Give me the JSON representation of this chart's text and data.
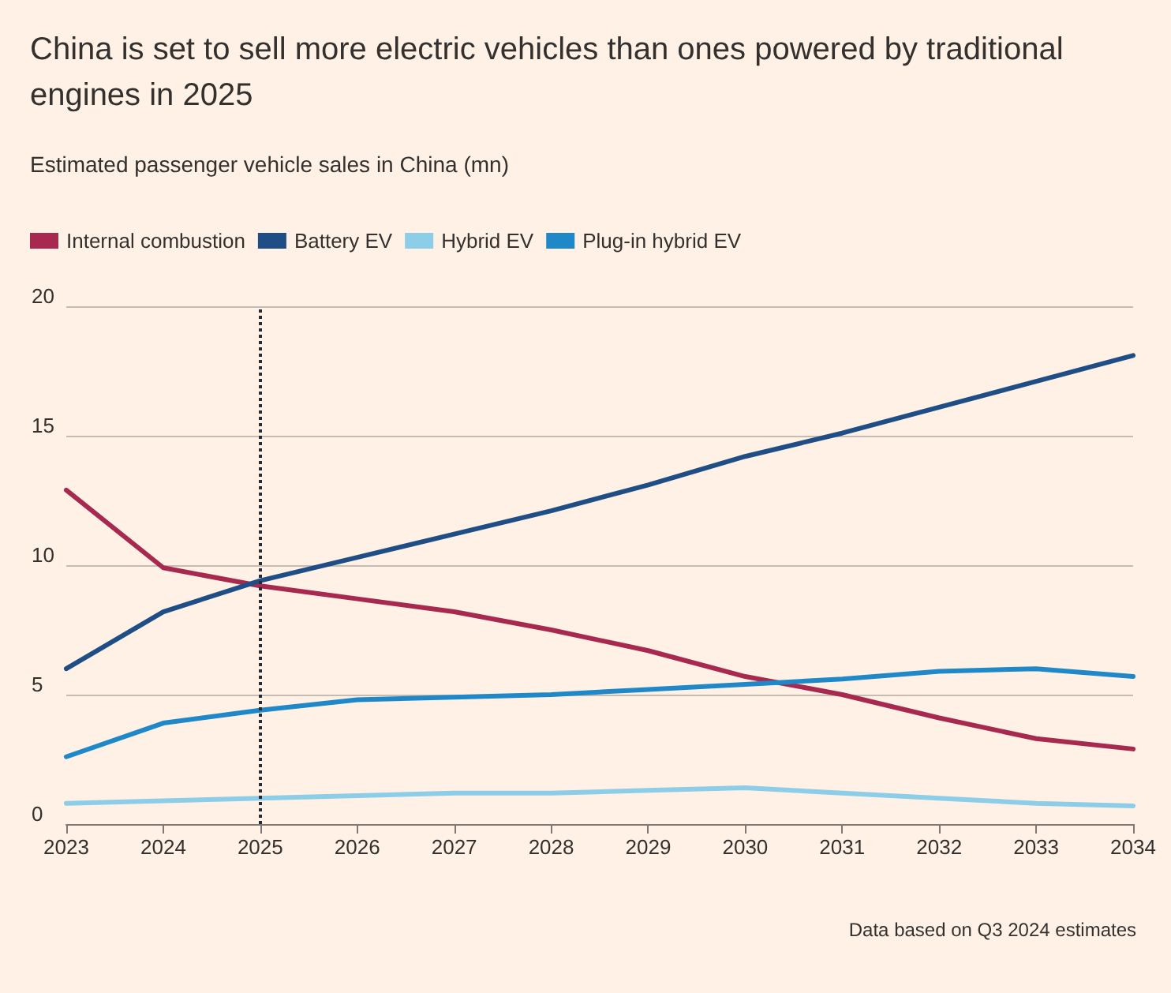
{
  "chart_data": {
    "type": "line",
    "title": "China is set to sell more electric vehicles than ones powered by traditional engines in 2025",
    "subtitle": "Estimated passenger vehicle sales in China (mn)",
    "x": [
      2023,
      2024,
      2025,
      2026,
      2027,
      2028,
      2029,
      2030,
      2031,
      2032,
      2033,
      2034
    ],
    "series": [
      {
        "name": "Internal combustion",
        "color": "#a8294f",
        "values": [
          12.9,
          9.9,
          9.2,
          8.7,
          8.2,
          7.5,
          6.7,
          5.7,
          5.0,
          4.1,
          3.3,
          2.9
        ]
      },
      {
        "name": "Battery EV",
        "color": "#1f4e86",
        "values": [
          6.0,
          8.2,
          9.4,
          10.3,
          11.2,
          12.1,
          13.1,
          14.2,
          15.1,
          16.1,
          17.1,
          18.1
        ]
      },
      {
        "name": "Hybrid EV",
        "color": "#8ccde8",
        "values": [
          0.8,
          0.9,
          1.0,
          1.1,
          1.2,
          1.2,
          1.3,
          1.4,
          1.2,
          1.0,
          0.8,
          0.7
        ]
      },
      {
        "name": "Plug-in hybrid EV",
        "color": "#1e88c8",
        "values": [
          2.6,
          3.9,
          4.4,
          4.8,
          4.9,
          5.0,
          5.2,
          5.4,
          5.6,
          5.9,
          6.0,
          5.7
        ]
      }
    ],
    "xlim": [
      2023,
      2034
    ],
    "xticks": [
      2023,
      2024,
      2025,
      2026,
      2027,
      2028,
      2029,
      2030,
      2031,
      2032,
      2033,
      2034
    ],
    "ylim": [
      0,
      20
    ],
    "yticks": [
      0,
      5,
      10,
      15,
      20
    ],
    "ref_lines": [
      {
        "axis": "x",
        "value": 2025,
        "color": "#262a33",
        "line_style": "dotted"
      }
    ],
    "grid": "y",
    "legend": "top left",
    "marker": "none",
    "line_style": "solid",
    "annotations": [
      "Data based on Q3 2024 estimates"
    ]
  }
}
